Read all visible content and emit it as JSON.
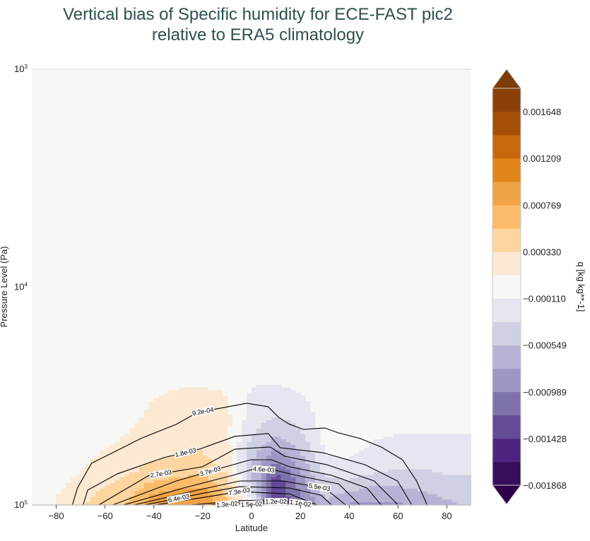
{
  "title_line1": "Vertical bias of Specific humidity for ECE-FAST pic2",
  "title_line2": "relative to ERA5 climatology",
  "chart_data": {
    "type": "heatmap",
    "subtype": "filled contour with line contours",
    "xlabel": "Latitude",
    "ylabel": "Pressure Level (Pa)",
    "xlim": [
      -90,
      90
    ],
    "ylim": [
      100000,
      1000
    ],
    "yscale": "log",
    "x_ticks": [
      -80,
      -60,
      -40,
      -20,
      0,
      20,
      40,
      60,
      80
    ],
    "y_ticks": [
      {
        "base": "10",
        "exp": "3",
        "value": 1000
      },
      {
        "base": "10",
        "exp": "4",
        "value": 10000
      },
      {
        "base": "10",
        "exp": "5",
        "value": 100000
      }
    ],
    "grid": false,
    "background_color": "#f7f7f6",
    "colorbar": {
      "label": "q [kg kg**-1]",
      "extend": "both",
      "levels_min": -0.001868,
      "levels_max": 0.001868,
      "n_bands": 17,
      "tick_labels": [
        "0.001648",
        "0.001209",
        "0.000769",
        "0.000330",
        "−0.000110",
        "−0.000549",
        "−0.000989",
        "−0.001428",
        "−0.001868"
      ],
      "tick_values": [
        0.001648,
        0.001209,
        0.000769,
        0.00033,
        -0.00011,
        -0.000549,
        -0.000989,
        -0.001428,
        -0.001868
      ],
      "over_color": "#7f3b08",
      "under_color": "#2d004b",
      "band_colors_low_to_high": [
        "#370d5c",
        "#4e2480",
        "#654a97",
        "#7f72aa",
        "#9e97c4",
        "#b8b3d6",
        "#d0d0e4",
        "#e6e5f0",
        "#f7f7f7",
        "#fbe9d3",
        "#fdd5a1",
        "#fbbb6b",
        "#f0a346",
        "#e0861b",
        "#c8680d",
        "#a64f06",
        "#8a3f08"
      ]
    },
    "bias_field": {
      "latitudes": [
        -90,
        -80,
        -70,
        -60,
        -50,
        -40,
        -30,
        -20,
        -10,
        0,
        10,
        20,
        30,
        40,
        50,
        60,
        70,
        80,
        90
      ],
      "pressures": [
        25000,
        30000,
        40000,
        50000,
        60000,
        70000,
        80000,
        90000,
        100000
      ],
      "values": [
        [
          0,
          0,
          0,
          0,
          0,
          0,
          0,
          0,
          0,
          -5e-05,
          -5e-05,
          0,
          0,
          0,
          0,
          0,
          0,
          0,
          0
        ],
        [
          0,
          0,
          0,
          0,
          0,
          8e-05,
          0.00013,
          0.00013,
          0.0001,
          -0.00013,
          -0.00015,
          -0.0001,
          0,
          0,
          0,
          0,
          0,
          0,
          0
        ],
        [
          0,
          0,
          0,
          0,
          5e-05,
          0.00018,
          0.0002,
          0.0002,
          0.00015,
          -0.0002,
          -0.00035,
          -0.00025,
          0,
          0,
          0,
          0,
          0,
          0,
          0
        ],
        [
          0,
          0,
          0,
          5e-05,
          0.00015,
          0.00025,
          0.0003,
          0.0003,
          0.00015,
          -0.00035,
          -0.0006,
          -0.0004,
          -5e-05,
          0,
          -0.0001,
          -0.00015,
          -0.00015,
          -0.00015,
          -0.00015
        ],
        [
          0,
          0,
          5e-05,
          0.00015,
          0.00022,
          0.0003,
          0.00035,
          0.00035,
          0.0002,
          -0.0005,
          -0.0009,
          -0.0006,
          -0.00012,
          -0.0001,
          -0.0002,
          -0.00025,
          -0.00025,
          -0.00025,
          -0.00025
        ],
        [
          0,
          0,
          0.0001,
          0.00022,
          0.0003,
          0.0004,
          0.00045,
          0.0005,
          0.0003,
          -0.0006,
          -0.0012,
          -0.0008,
          -0.00025,
          -0.0002,
          -0.0003,
          -0.00035,
          -0.00035,
          -0.0003,
          -0.0003
        ],
        [
          0,
          5e-05,
          0.00018,
          0.0003,
          0.0004,
          0.0006,
          0.00065,
          0.0007,
          0.0004,
          -0.0004,
          -0.0014,
          -0.0009,
          -0.0004,
          -0.0004,
          -0.0005,
          -0.0005,
          -0.00045,
          -0.0004,
          -0.0004
        ],
        [
          0,
          0.0001,
          0.00025,
          0.0004,
          0.0005,
          0.0008,
          0.0009,
          0.0009,
          0.0005,
          -0.0002,
          -0.0014,
          -0.001,
          -0.0005,
          -0.0006,
          -0.0007,
          -0.0007,
          -0.0006,
          -0.0005,
          -0.0005
        ],
        [
          0,
          0.0001,
          0.0003,
          0.00045,
          0.0006,
          0.0009,
          0.001,
          0.001,
          0.0006,
          -0.0001,
          -0.0015,
          -0.0011,
          -0.0006,
          -0.0008,
          -0.0008,
          -0.0008,
          -0.0007,
          -0.0006,
          -0.0005
        ]
      ]
    },
    "climatology_contours": [
      {
        "label": "9.2e-04",
        "label_lat": -20,
        "points": [
          [
            -73.4,
            100000
          ],
          [
            -71.3,
            83600
          ],
          [
            -65.5,
            64300
          ],
          [
            -56.8,
            57500
          ],
          [
            -45.3,
            49500
          ],
          [
            -30.8,
            42600
          ],
          [
            -22.1,
            37600
          ],
          [
            -10.6,
            35600
          ],
          [
            -1.9,
            34100
          ],
          [
            6.8,
            35400
          ],
          [
            11.1,
            39600
          ],
          [
            15.5,
            42600
          ],
          [
            21.3,
            45000
          ],
          [
            29.9,
            44300
          ],
          [
            35.7,
            46700
          ],
          [
            44.4,
            49500
          ],
          [
            53.1,
            54200
          ],
          [
            61.8,
            62000
          ],
          [
            67.6,
            77600
          ],
          [
            71.9,
            100000
          ]
        ]
      },
      {
        "label": "1.8e-03",
        "label_lat": -27,
        "points": [
          [
            -69.0,
            100000
          ],
          [
            -67.1,
            85500
          ],
          [
            -54.9,
            71900
          ],
          [
            -35.8,
            60600
          ],
          [
            -21.3,
            55400
          ],
          [
            -6.8,
            48400
          ],
          [
            6.8,
            47000
          ],
          [
            11.7,
            54600
          ],
          [
            29.1,
            57500
          ],
          [
            46.4,
            65300
          ],
          [
            59.8,
            77600
          ],
          [
            65.5,
            99300
          ]
        ]
      },
      {
        "label": "2.7e-03",
        "label_lat": -37,
        "points": [
          [
            -62.6,
            100000
          ],
          [
            -42.4,
            73600
          ],
          [
            -20.1,
            66800
          ],
          [
            -6.8,
            55400
          ],
          [
            7.7,
            54200
          ],
          [
            13.5,
            59700
          ],
          [
            30.8,
            65300
          ],
          [
            50.2,
            77600
          ],
          [
            59.8,
            99300
          ]
        ]
      },
      {
        "label": "3.7e-03",
        "label_lat": -17,
        "points": [
          [
            -56.9,
            100000
          ],
          [
            -30.8,
            77600
          ],
          [
            -10.6,
            66800
          ],
          [
            -0.4,
            62000
          ],
          [
            8.2,
            62000
          ],
          [
            15.5,
            66800
          ],
          [
            32.8,
            73100
          ],
          [
            47.3,
            83600
          ],
          [
            53.1,
            100000
          ]
        ]
      },
      {
        "label": "4.6e-03",
        "label_lat": 5,
        "points": [
          [
            -52.5,
            100000
          ],
          [
            -27.9,
            83600
          ],
          [
            -7.7,
            73100
          ],
          [
            1,
            68300
          ],
          [
            9.7,
            69300
          ],
          [
            18.4,
            73100
          ],
          [
            35.7,
            80000
          ],
          [
            44.4,
            100000
          ]
        ]
      },
      {
        "label": "5.5e-03",
        "label_lat": 28,
        "points": [
          [
            -48.2,
            100000
          ],
          [
            -22.1,
            85500
          ],
          [
            -4.8,
            77600
          ],
          [
            12.6,
            77600
          ],
          [
            29.9,
            83600
          ],
          [
            38.6,
            100000
          ]
        ]
      },
      {
        "label": "6.4e-03",
        "label_lat": -30,
        "points": [
          [
            -43.8,
            100000
          ],
          [
            -19.2,
            88000
          ],
          [
            -4.8,
            82400
          ],
          [
            15.5,
            83600
          ],
          [
            28.5,
            90200
          ],
          [
            32.8,
            100000
          ]
        ]
      },
      {
        "label": "7.3e-03",
        "label_lat": -5,
        "points": [
          [
            -39.5,
            100000
          ],
          [
            -16.3,
            91000
          ],
          [
            -4.8,
            86700
          ],
          [
            15.5,
            89000
          ],
          [
            27,
            100000
          ]
        ]
      },
      {
        "label": "1.1e-02",
        "label_lat": 3,
        "points": [
          [
            -25,
            100000
          ],
          [
            -5,
            95500
          ],
          [
            10,
            95000
          ],
          [
            25,
            100000
          ]
        ]
      },
      {
        "label": "1.2e-02",
        "label_lat": 5,
        "points": [
          [
            -18,
            100000
          ],
          [
            -4,
            96800
          ],
          [
            10,
            96500
          ],
          [
            20,
            100000
          ]
        ]
      },
      {
        "label": "1.3e-02",
        "label_lat": 0,
        "points": [
          [
            -12,
            100000
          ],
          [
            -3,
            98000
          ],
          [
            8,
            98000
          ],
          [
            15,
            100000
          ]
        ]
      },
      {
        "label": "1.5e-02",
        "label_lat": 0,
        "points": [
          [
            -6,
            100000
          ],
          [
            0,
            99200
          ],
          [
            6,
            100000
          ]
        ]
      }
    ]
  }
}
